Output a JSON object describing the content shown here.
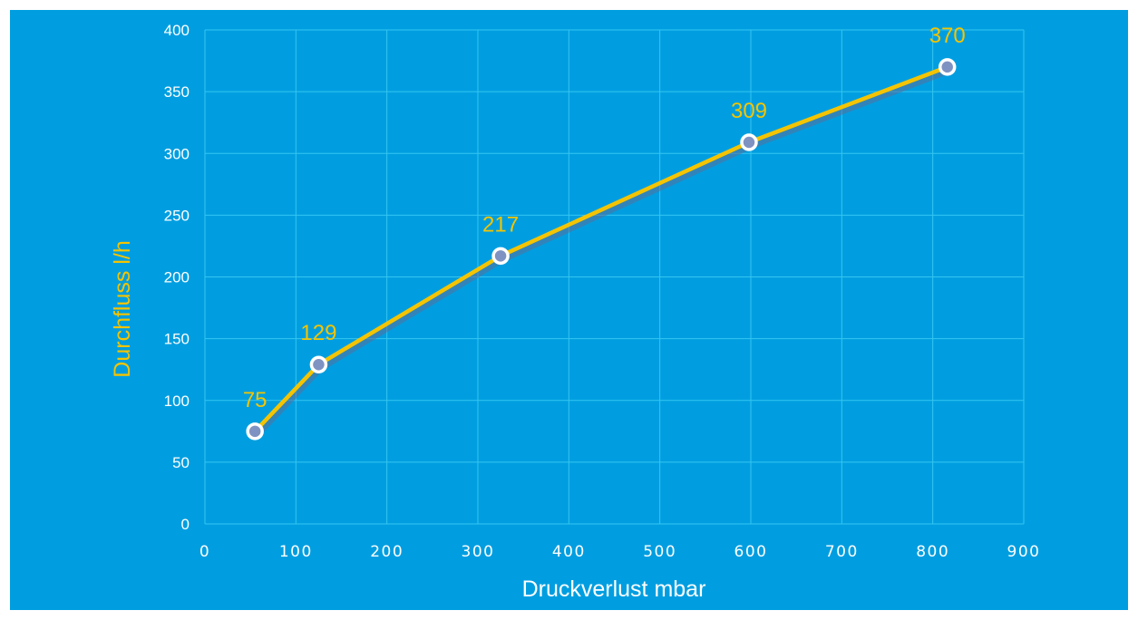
{
  "chart_data": {
    "type": "line",
    "x": [
      55,
      125,
      325,
      598,
      816
    ],
    "series": [
      {
        "values": [
          75,
          129,
          217,
          309,
          370
        ]
      }
    ],
    "data_labels": [
      "75",
      "129",
      "217",
      "309",
      "370"
    ],
    "xlabel": "Druckverlust mbar",
    "ylabel": "Durchfluss  l/h",
    "xlim": [
      0,
      900
    ],
    "ylim": [
      0,
      400
    ],
    "x_ticks": [
      0,
      100,
      200,
      300,
      400,
      500,
      600,
      700,
      800,
      900
    ],
    "y_ticks": [
      0,
      50,
      100,
      150,
      200,
      250,
      300,
      350,
      400
    ],
    "grid": true,
    "colors": {
      "background": "#009ee0",
      "line": "#f5c400",
      "line_shadow": "#5a6f9a",
      "marker_fill": "#7f93c2",
      "marker_stroke": "#ffffff",
      "grid": "#35c6f2",
      "data_label": "#f5c400",
      "y_title": "#f5c400",
      "x_title": "#ffffff",
      "tick_label": "#ffffff"
    }
  }
}
